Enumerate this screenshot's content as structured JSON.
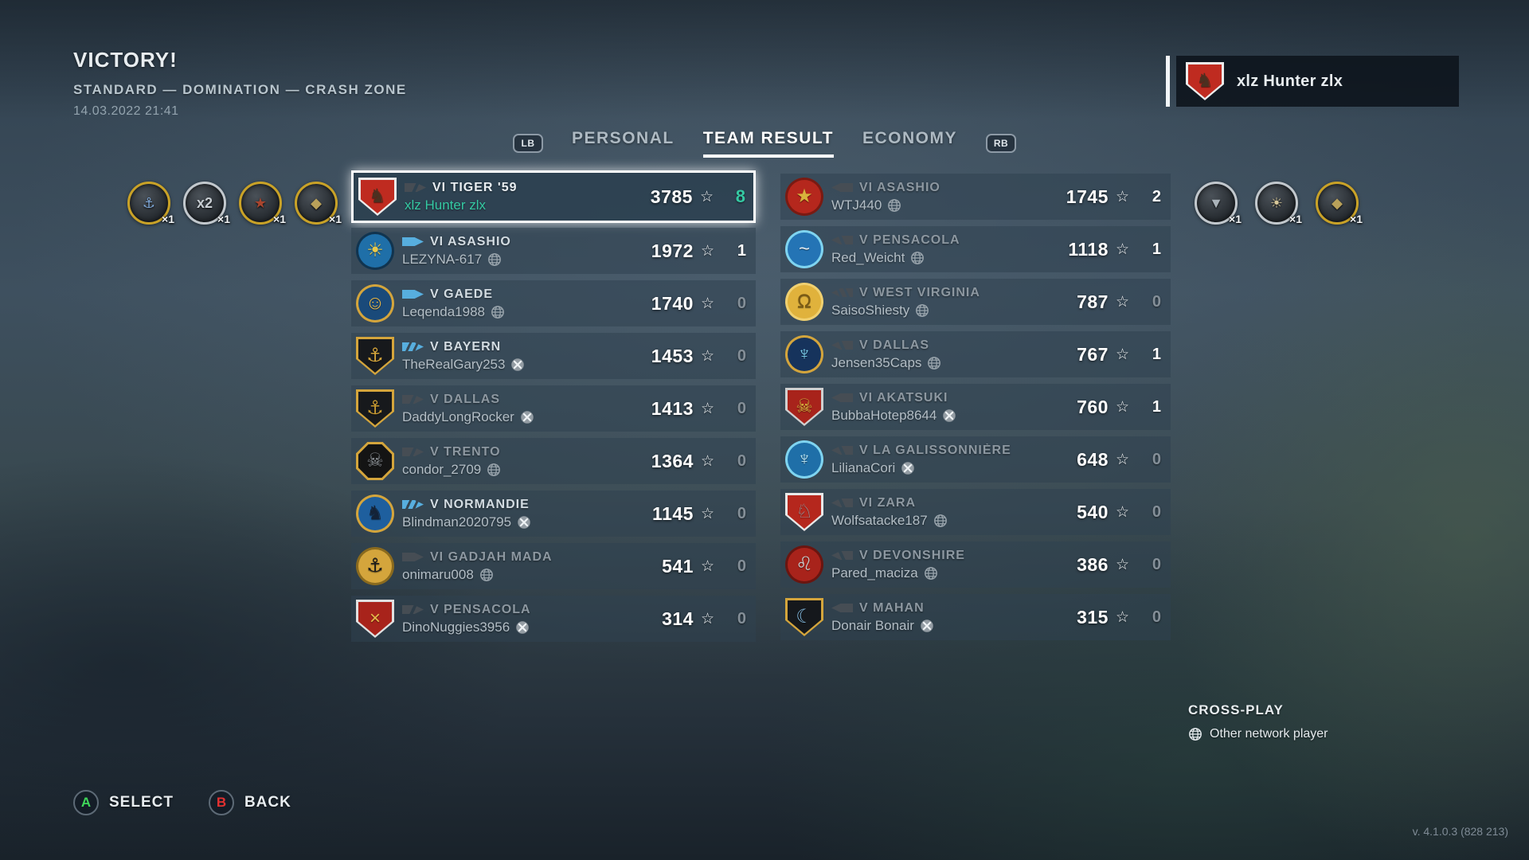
{
  "header": {
    "result": "VICTORY!",
    "mode": "STANDARD — DOMINATION — CRASH ZONE",
    "datetime": "14.03.2022 21:41"
  },
  "player_banner": {
    "name": "xlz Hunter zlx"
  },
  "tabs": {
    "lb": "LB",
    "rb": "RB",
    "personal": "PERSONAL",
    "team_result": "TEAM RESULT",
    "economy": "ECONOMY"
  },
  "colors": {
    "accent_self": "#35c9a3",
    "alive_class_icon": "#57aede",
    "dead_class_icon": "#464d54",
    "gold_medal": "#c9a227",
    "silver_medal": "#c2c8cd"
  },
  "medals": {
    "left": [
      {
        "name": "anchor-medal",
        "tier": "gold",
        "glyph": "⚓",
        "glyph_color": "#7fa8d8",
        "count": "×1"
      },
      {
        "name": "double-strike-medal",
        "tier": "silver",
        "glyph": "x2",
        "glyph_color": "#c8ced3",
        "count": "×1"
      },
      {
        "name": "warship-medal",
        "tier": "gold",
        "glyph": "★",
        "glyph_color": "#a8452e",
        "count": "×1"
      },
      {
        "name": "shell-medal",
        "tier": "gold",
        "glyph": "◆",
        "glyph_color": "#b9a15a",
        "count": "×1"
      }
    ],
    "right": [
      {
        "name": "sinking-ship-medal",
        "tier": "silver",
        "glyph": "▼",
        "glyph_color": "#aab3ba",
        "count": "×1"
      },
      {
        "name": "explosion-medal",
        "tier": "silver",
        "glyph": "☀",
        "glyph_color": "#d8c89a",
        "count": "×1"
      },
      {
        "name": "shell-medal",
        "tier": "gold",
        "glyph": "◆",
        "glyph_color": "#b9a15a",
        "count": "×1"
      }
    ]
  },
  "teams": {
    "allies": [
      {
        "ship": "VI TIGER '59",
        "player": "xlz Hunter zlx",
        "score": "3785",
        "kills": "8",
        "class": "cruiser",
        "alive": false,
        "platform": "",
        "self": true,
        "emblem": {
          "shape": "shield",
          "bg": "#bf2b20",
          "ring": "#ececec",
          "glyph": "♞",
          "glyph_color": "#4b3020"
        }
      },
      {
        "ship": "VI ASASHIO",
        "player": "LEZYNA-617",
        "score": "1972",
        "kills": "1",
        "class": "destroyer",
        "alive": true,
        "platform": "globe",
        "self": false,
        "emblem": {
          "shape": "circle",
          "bg": "#1f6fa8",
          "ring": "#11344f",
          "glyph": "☀",
          "glyph_color": "#e8c94a"
        }
      },
      {
        "ship": "V GAEDE",
        "player": "Leqenda1988",
        "score": "1740",
        "kills": "0",
        "class": "destroyer",
        "alive": true,
        "platform": "globe",
        "self": false,
        "emblem": {
          "shape": "circle",
          "bg": "#1a4a7a",
          "ring": "#d4a53c",
          "glyph": "☺",
          "glyph_color": "#e8b84a"
        }
      },
      {
        "ship": "V BAYERN",
        "player": "TheRealGary253",
        "score": "1453",
        "kills": "0",
        "class": "battleship",
        "alive": true,
        "platform": "xbox",
        "self": false,
        "emblem": {
          "shape": "shield",
          "bg": "#17191c",
          "ring": "#d4a53c",
          "glyph": "⚓",
          "glyph_color": "#d4a53c"
        }
      },
      {
        "ship": "V DALLAS",
        "player": "DaddyLongRocker",
        "score": "1413",
        "kills": "0",
        "class": "cruiser",
        "alive": false,
        "platform": "xbox",
        "self": false,
        "emblem": {
          "shape": "shield",
          "bg": "#17191c",
          "ring": "#d4a53c",
          "glyph": "⚓",
          "glyph_color": "#c89a32"
        }
      },
      {
        "ship": "V TRENTO",
        "player": "condor_2709",
        "score": "1364",
        "kills": "0",
        "class": "cruiser",
        "alive": false,
        "platform": "globe",
        "self": false,
        "emblem": {
          "shape": "octagon",
          "bg": "#141414",
          "ring": "#d4a53c",
          "glyph": "☠",
          "glyph_color": "#8a8f94"
        }
      },
      {
        "ship": "V NORMANDIE",
        "player": "Blindman2020795",
        "score": "1145",
        "kills": "0",
        "class": "battleship",
        "alive": true,
        "platform": "xbox",
        "self": false,
        "emblem": {
          "shape": "circle",
          "bg": "#1e5f9e",
          "ring": "#d4a53c",
          "glyph": "♞",
          "glyph_color": "#142338"
        }
      },
      {
        "ship": "VI GADJAH MADA",
        "player": "onimaru008",
        "score": "541",
        "kills": "0",
        "class": "destroyer",
        "alive": false,
        "platform": "globe",
        "self": false,
        "emblem": {
          "shape": "circle",
          "bg": "#d4a53c",
          "ring": "#8a6a1e",
          "glyph": "⚓",
          "glyph_color": "#1a1a1a"
        }
      },
      {
        "ship": "V PENSACOLA",
        "player": "DinoNuggies3956",
        "score": "314",
        "kills": "0",
        "class": "cruiser",
        "alive": false,
        "platform": "xbox",
        "self": false,
        "emblem": {
          "shape": "shield",
          "bg": "#a8231b",
          "ring": "#e0e0e0",
          "glyph": "×",
          "glyph_color": "#e8b84a"
        }
      }
    ],
    "enemies": [
      {
        "ship": "VI ASASHIO",
        "player": "WTJ440",
        "score": "1745",
        "kills": "2",
        "class": "destroyer",
        "alive": false,
        "platform": "globe",
        "self": false,
        "emblem": {
          "shape": "circle",
          "bg": "#b5271d",
          "ring": "#7a1a12",
          "glyph": "★",
          "glyph_color": "#d8b33c"
        }
      },
      {
        "ship": "V PENSACOLA",
        "player": "Red_Weicht",
        "score": "1118",
        "kills": "1",
        "class": "cruiser",
        "alive": false,
        "platform": "globe",
        "self": false,
        "emblem": {
          "shape": "seal",
          "bg": "#2474b5",
          "ring": "#7fd4f0",
          "glyph": "~",
          "glyph_color": "#e8eef2"
        }
      },
      {
        "ship": "V WEST VIRGINIA",
        "player": "SaisoShiesty",
        "score": "787",
        "kills": "0",
        "class": "battleship",
        "alive": false,
        "platform": "globe",
        "self": false,
        "emblem": {
          "shape": "circle",
          "bg": "#e0b23c",
          "ring": "#f0d070",
          "glyph": "Ω",
          "glyph_color": "#7a5a14"
        }
      },
      {
        "ship": "V DALLAS",
        "player": "Jensen35Caps",
        "score": "767",
        "kills": "1",
        "class": "cruiser",
        "alive": false,
        "platform": "globe",
        "self": false,
        "emblem": {
          "shape": "circle",
          "bg": "#16335c",
          "ring": "#d4a53c",
          "glyph": "♆",
          "glyph_color": "#7fd4f0"
        }
      },
      {
        "ship": "VI AKATSUKI",
        "player": "BubbaHotep8644",
        "score": "760",
        "kills": "1",
        "class": "destroyer",
        "alive": false,
        "platform": "xbox",
        "self": false,
        "emblem": {
          "shape": "shield",
          "bg": "#a8231b",
          "ring": "#d0d0d0",
          "glyph": "☠",
          "glyph_color": "#d8b33c"
        }
      },
      {
        "ship": "V LA GALISSONNIÈRE",
        "player": "LilianaCori",
        "score": "648",
        "kills": "0",
        "class": "cruiser",
        "alive": false,
        "platform": "xbox",
        "self": false,
        "emblem": {
          "shape": "seal",
          "bg": "#1f6fa8",
          "ring": "#7fd4f0",
          "glyph": "♆",
          "glyph_color": "#bfe8f5"
        }
      },
      {
        "ship": "VI ZARA",
        "player": "Wolfsatacke187",
        "score": "540",
        "kills": "0",
        "class": "cruiser",
        "alive": false,
        "platform": "globe",
        "self": false,
        "emblem": {
          "shape": "shield",
          "bg": "#b5271d",
          "ring": "#e8e8e8",
          "glyph": "♘",
          "glyph_color": "#9aa0a6"
        }
      },
      {
        "ship": "V DEVONSHIRE",
        "player": "Pared_maciza",
        "score": "386",
        "kills": "0",
        "class": "cruiser",
        "alive": false,
        "platform": "globe",
        "self": false,
        "emblem": {
          "shape": "circle",
          "bg": "#a8231b",
          "ring": "#6a1510",
          "glyph": "♌",
          "glyph_color": "#c8c8c8"
        }
      },
      {
        "ship": "V MAHAN",
        "player": "Donair Bonair",
        "score": "315",
        "kills": "0",
        "class": "destroyer",
        "alive": false,
        "platform": "xbox",
        "self": false,
        "emblem": {
          "shape": "shield",
          "bg": "#15181c",
          "ring": "#d4a53c",
          "glyph": "☾",
          "glyph_color": "#7fb4d8"
        }
      }
    ]
  },
  "crossplay": {
    "title": "CROSS-PLAY",
    "legend": "Other network player"
  },
  "controls": {
    "a": "A",
    "a_label": "SELECT",
    "b": "B",
    "b_label": "BACK"
  },
  "version": "v. 4.1.0.3 (828 213)"
}
